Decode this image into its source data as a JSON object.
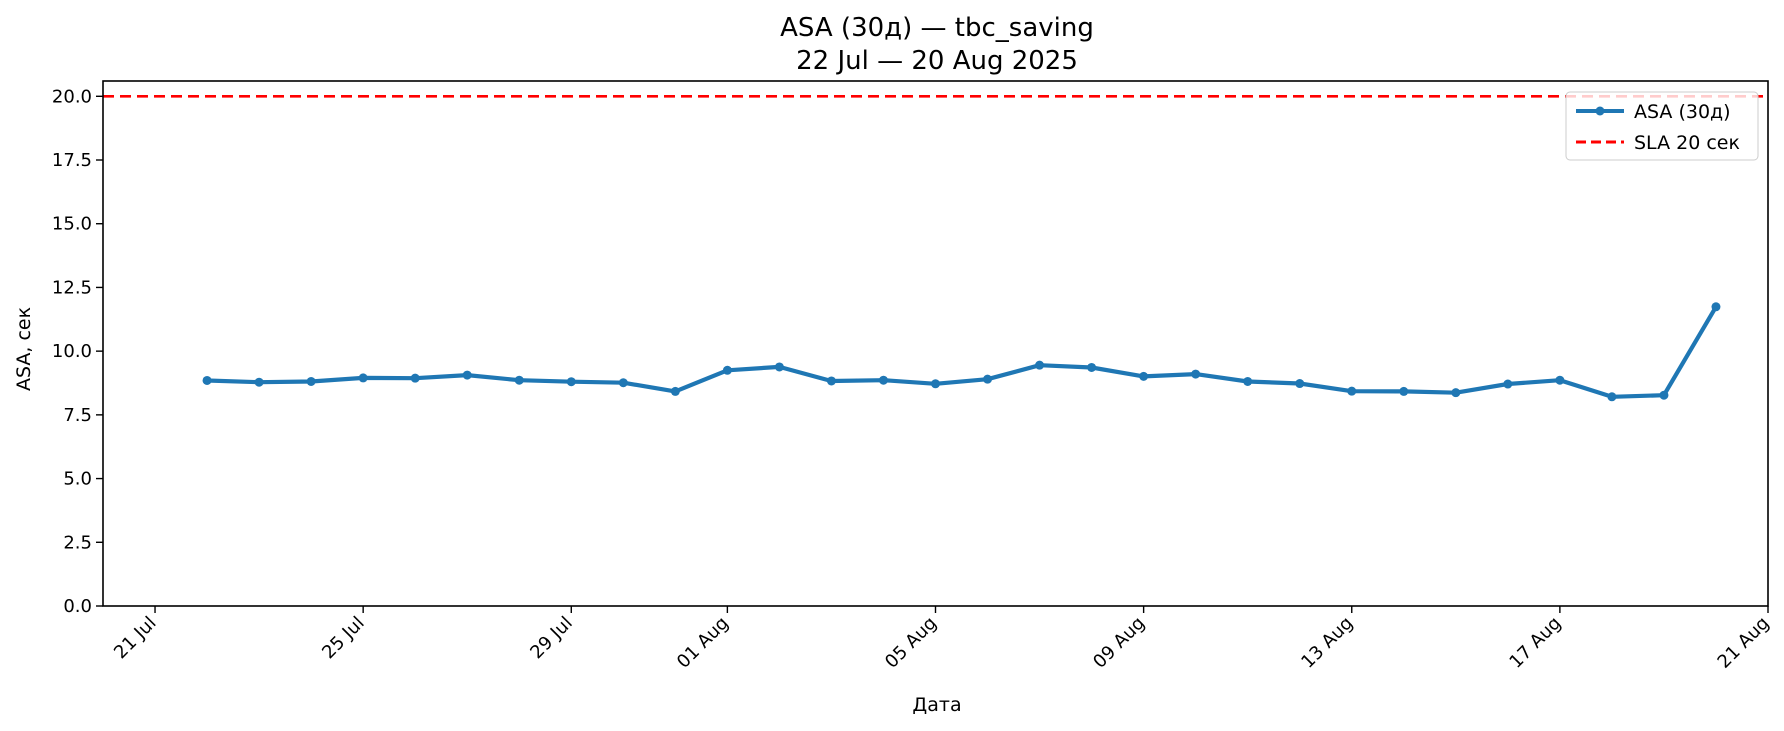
{
  "chart_data": {
    "type": "line",
    "title": "ASA (30д) — tbc_saving",
    "subtitle": "22 Jul — 20 Aug 2025",
    "xlabel": "Дата",
    "ylabel": "ASA, сек",
    "xlim": [
      "2025-07-20",
      "2025-08-21"
    ],
    "ylim": [
      0,
      20.6
    ],
    "x_ticks": [
      "2025-07-21",
      "2025-07-25",
      "2025-07-29",
      "2025-08-01",
      "2025-08-05",
      "2025-08-09",
      "2025-08-13",
      "2025-08-17",
      "2025-08-21"
    ],
    "x_tick_labels": [
      "21 Jul",
      "25 Jul",
      "29 Jul",
      "01 Aug",
      "05 Aug",
      "09 Aug",
      "13 Aug",
      "17 Aug",
      "21 Aug"
    ],
    "y_ticks": [
      0,
      2.5,
      5,
      7.5,
      10,
      12.5,
      15,
      17.5,
      20
    ],
    "y_tick_labels": [
      "0.0",
      "2.5",
      "5.0",
      "7.5",
      "10.0",
      "12.5",
      "15.0",
      "17.5",
      "20.0"
    ],
    "grid": false,
    "legend_position": "top-right",
    "series": [
      {
        "name": "ASA (30д)",
        "color": "#1f77b4",
        "style": "solid-with-markers",
        "points": [
          {
            "x": "2025-07-22",
            "y": 8.85
          },
          {
            "x": "2025-07-23",
            "y": 8.78
          },
          {
            "x": "2025-07-24",
            "y": 8.81
          },
          {
            "x": "2025-07-25",
            "y": 8.95
          },
          {
            "x": "2025-07-26",
            "y": 8.94
          },
          {
            "x": "2025-07-27",
            "y": 9.06
          },
          {
            "x": "2025-07-28",
            "y": 8.86
          },
          {
            "x": "2025-07-29",
            "y": 8.8
          },
          {
            "x": "2025-07-30",
            "y": 8.76
          },
          {
            "x": "2025-07-31",
            "y": 8.42
          },
          {
            "x": "2025-08-01",
            "y": 9.25
          },
          {
            "x": "2025-08-02",
            "y": 9.38
          },
          {
            "x": "2025-08-03",
            "y": 8.83
          },
          {
            "x": "2025-08-04",
            "y": 8.86
          },
          {
            "x": "2025-08-05",
            "y": 8.72
          },
          {
            "x": "2025-08-06",
            "y": 8.9
          },
          {
            "x": "2025-08-07",
            "y": 9.45
          },
          {
            "x": "2025-08-08",
            "y": 9.36
          },
          {
            "x": "2025-08-09",
            "y": 9.01
          },
          {
            "x": "2025-08-10",
            "y": 9.1
          },
          {
            "x": "2025-08-11",
            "y": 8.81
          },
          {
            "x": "2025-08-12",
            "y": 8.73
          },
          {
            "x": "2025-08-13",
            "y": 8.43
          },
          {
            "x": "2025-08-14",
            "y": 8.42
          },
          {
            "x": "2025-08-15",
            "y": 8.37
          },
          {
            "x": "2025-08-16",
            "y": 8.71
          },
          {
            "x": "2025-08-17",
            "y": 8.86
          },
          {
            "x": "2025-08-18",
            "y": 8.21
          },
          {
            "x": "2025-08-19",
            "y": 8.27
          },
          {
            "x": "2025-08-20",
            "y": 11.74
          }
        ]
      }
    ],
    "reference_lines": [
      {
        "name": "SLA 20 сек",
        "y": 20,
        "color": "#ff0000",
        "style": "dashed"
      }
    ]
  }
}
